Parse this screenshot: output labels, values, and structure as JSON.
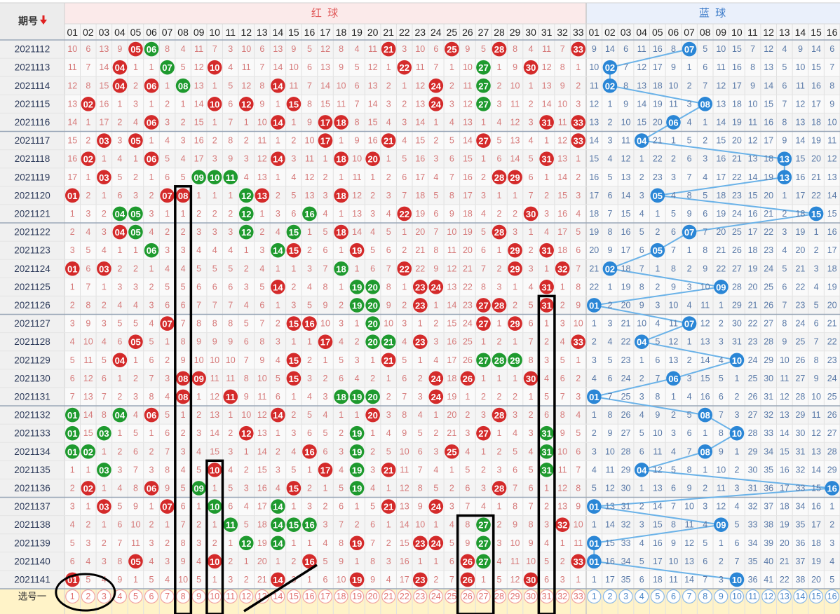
{
  "header": {
    "period_label": "期号",
    "red_label": "红 球",
    "blue_label": "蓝 球",
    "sort_icon": "down-arrow-icon",
    "select_label": "选号一"
  },
  "colors": {
    "red_ball": "#d42a2a",
    "green_ball": "#1e9a2e",
    "blue_ball": "#2a86d6",
    "red_text": "#d67a7a",
    "blue_text": "#5a7aa8",
    "red_header_bg": "#fbeaea",
    "blue_header_bg": "#eaf0fb",
    "select_row_bg": "#fff3c8",
    "blue_line": "#6ab2e8"
  },
  "red_numbers": [
    "01",
    "02",
    "03",
    "04",
    "05",
    "06",
    "07",
    "08",
    "09",
    "10",
    "11",
    "12",
    "13",
    "14",
    "15",
    "16",
    "17",
    "18",
    "19",
    "20",
    "21",
    "22",
    "23",
    "24",
    "25",
    "26",
    "27",
    "28",
    "29",
    "30",
    "31",
    "32",
    "33"
  ],
  "blue_numbers": [
    "01",
    "02",
    "03",
    "04",
    "05",
    "06",
    "07",
    "08",
    "09",
    "10",
    "11",
    "12",
    "13",
    "14",
    "15",
    "16"
  ],
  "select_red": [
    "1",
    "2",
    "3",
    "4",
    "5",
    "6",
    "7",
    "8",
    "9",
    "10",
    "11",
    "12",
    "13",
    "14",
    "15",
    "16",
    "17",
    "18",
    "19",
    "20",
    "21",
    "22",
    "23",
    "24",
    "25",
    "26",
    "27",
    "28",
    "29",
    "30",
    "31",
    "32",
    "33"
  ],
  "select_blue": [
    "1",
    "2",
    "3",
    "4",
    "5",
    "6",
    "7",
    "8",
    "9",
    "10",
    "11",
    "12",
    "13",
    "14",
    "15",
    "16"
  ],
  "periods": [
    "2021112",
    "2021113",
    "2021114",
    "2021115",
    "2021116",
    "2021117",
    "2021118",
    "2021119",
    "2021120",
    "2021121",
    "2021122",
    "2021123",
    "2021124",
    "2021125",
    "2021126",
    "2021127",
    "2021128",
    "2021129",
    "2021130",
    "2021131",
    "2021132",
    "2021133",
    "2021134",
    "2021135",
    "2021136",
    "2021137",
    "2021138",
    "2021139",
    "2021140",
    "2021141"
  ],
  "draws": [
    {
      "red": [
        5,
        6,
        21,
        25,
        28,
        33
      ],
      "green": [
        6
      ],
      "blue": 7
    },
    {
      "red": [
        4,
        7,
        10,
        22,
        27,
        30
      ],
      "green": [
        7,
        27
      ],
      "blue": 2
    },
    {
      "red": [
        4,
        6,
        8,
        14,
        24,
        27
      ],
      "green": [
        8,
        27
      ],
      "blue": 2
    },
    {
      "red": [
        2,
        10,
        12,
        15,
        24,
        27
      ],
      "green": [
        27
      ],
      "blue": 8
    },
    {
      "red": [
        6,
        14,
        17,
        18,
        31,
        33
      ],
      "green": [],
      "blue": 6
    },
    {
      "red": [
        3,
        5,
        17,
        21,
        27,
        33
      ],
      "green": [],
      "blue": 4
    },
    {
      "red": [
        2,
        6,
        14,
        18,
        20,
        31
      ],
      "green": [],
      "blue": 13
    },
    {
      "red": [
        3,
        9,
        10,
        11,
        28,
        29
      ],
      "green": [
        9,
        10,
        11
      ],
      "blue": 13
    },
    {
      "red": [
        1,
        7,
        8,
        12,
        13,
        18
      ],
      "green": [
        12
      ],
      "blue": 5
    },
    {
      "red": [
        4,
        5,
        12,
        16,
        22,
        30
      ],
      "green": [
        4,
        5,
        12,
        16
      ],
      "blue": 15
    },
    {
      "red": [
        4,
        5,
        12,
        15,
        18,
        28
      ],
      "green": [
        5,
        12,
        15
      ],
      "blue": 7
    },
    {
      "red": [
        6,
        14,
        15,
        19,
        29,
        31
      ],
      "green": [
        6,
        14
      ],
      "blue": 5
    },
    {
      "red": [
        1,
        3,
        18,
        22,
        29,
        32
      ],
      "green": [
        18
      ],
      "blue": 2
    },
    {
      "red": [
        14,
        19,
        20,
        23,
        24,
        31
      ],
      "green": [
        19,
        20
      ],
      "blue": 9
    },
    {
      "red": [
        19,
        20,
        23,
        27,
        28,
        31
      ],
      "green": [
        19,
        20
      ],
      "blue": 1
    },
    {
      "red": [
        7,
        15,
        16,
        20,
        27,
        29
      ],
      "green": [
        20
      ],
      "blue": 7
    },
    {
      "red": [
        5,
        17,
        20,
        21,
        23,
        33
      ],
      "green": [
        20,
        21
      ],
      "blue": 4
    },
    {
      "red": [
        4,
        15,
        21,
        27,
        28,
        29
      ],
      "green": [
        27,
        28,
        29
      ],
      "blue": 10
    },
    {
      "red": [
        8,
        9,
        15,
        24,
        26,
        30
      ],
      "green": [],
      "blue": 6
    },
    {
      "red": [
        8,
        11,
        18,
        19,
        20,
        24
      ],
      "green": [
        18,
        19,
        20
      ],
      "blue": 1
    },
    {
      "red": [
        1,
        4,
        6,
        14,
        20,
        28
      ],
      "green": [
        1,
        4
      ],
      "blue": 8
    },
    {
      "red": [
        1,
        3,
        12,
        19,
        27,
        31
      ],
      "green": [
        1,
        3,
        19,
        31
      ],
      "blue": 10
    },
    {
      "red": [
        1,
        2,
        16,
        19,
        25,
        31
      ],
      "green": [
        1,
        2,
        19,
        31
      ],
      "blue": 8
    },
    {
      "red": [
        3,
        10,
        17,
        19,
        21,
        31
      ],
      "green": [
        3,
        19,
        31
      ],
      "blue": 4
    },
    {
      "red": [
        2,
        6,
        9,
        15,
        19,
        28
      ],
      "green": [
        9,
        19
      ],
      "blue": 16
    },
    {
      "red": [
        3,
        7,
        10,
        14,
        21,
        24
      ],
      "green": [
        10,
        14
      ],
      "blue": 1
    },
    {
      "red": [
        11,
        14,
        15,
        16,
        27,
        32
      ],
      "green": [
        11,
        14,
        15,
        16,
        27
      ],
      "blue": 9
    },
    {
      "red": [
        12,
        14,
        19,
        23,
        24,
        27
      ],
      "green": [
        12,
        14,
        27
      ],
      "blue": 1
    },
    {
      "red": [
        5,
        10,
        16,
        26,
        27,
        33
      ],
      "green": [
        27
      ],
      "blue": 1
    },
    {
      "red": [
        1,
        14,
        19,
        23,
        26,
        30
      ],
      "green": [],
      "blue": 10
    }
  ]
}
